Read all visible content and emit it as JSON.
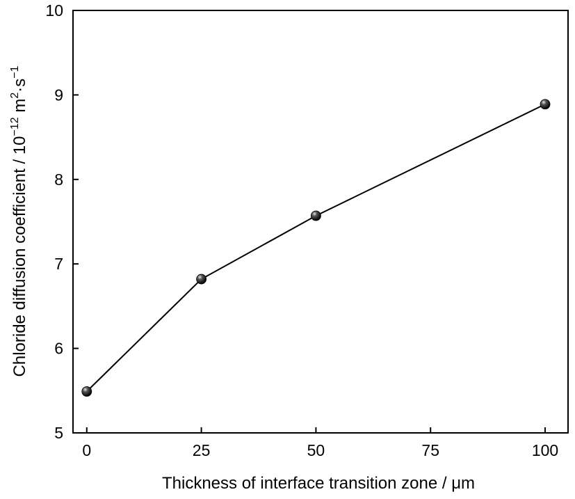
{
  "chart_data": {
    "type": "line",
    "xlabel": "Thickness of interface transition zone / μm",
    "ylabel": {
      "main": "Chloride diffusion coefficient / 10",
      "exp1": "−12",
      "mid": " m",
      "exp2": "2",
      "mid2": "·s",
      "exp3": "−1"
    },
    "xlim": [
      -3,
      105
    ],
    "ylim": [
      5,
      10
    ],
    "x_ticks": [
      0,
      25,
      50,
      75,
      100
    ],
    "y_ticks": [
      5,
      6,
      7,
      8,
      9,
      10
    ],
    "grid": false,
    "series": [
      {
        "x": [
          0,
          25,
          50,
          100
        ],
        "y": [
          5.49,
          6.82,
          7.57,
          8.89
        ]
      }
    ],
    "colors": {
      "line": "#000000",
      "marker": "#000000",
      "axis": "#000000"
    }
  }
}
